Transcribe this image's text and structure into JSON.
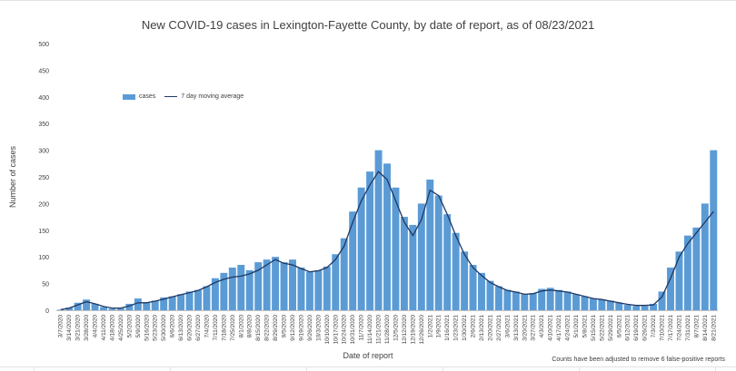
{
  "chart_data": {
    "type": "bar",
    "title": "New COVID-19 cases in Lexington-Fayette County, by date of report, as of 08/23/2021",
    "xlabel": "Date of report",
    "ylabel": "Number of cases",
    "ylim": [
      0,
      500
    ],
    "yticks": [
      0,
      50,
      100,
      150,
      200,
      250,
      300,
      350,
      400,
      450,
      500
    ],
    "grid": false,
    "legend_position": "top-left",
    "note": "Counts have been adjusted to remove 6 false-positive reports",
    "colors": {
      "bars": "#5b9bd5",
      "line": "#1f3864",
      "text": "#404040",
      "axis": "#bfbfbf"
    },
    "x_tick_labels": [
      "3/7/2020",
      "3/14/2020",
      "3/21/2020",
      "3/28/2020",
      "4/4/2020",
      "4/11/2020",
      "4/18/2020",
      "4/25/2020",
      "5/2/2020",
      "5/9/2020",
      "5/16/2020",
      "5/23/2020",
      "5/30/2020",
      "6/6/2020",
      "6/13/2020",
      "6/20/2020",
      "6/27/2020",
      "7/4/2020",
      "7/11/2020",
      "7/18/2020",
      "7/25/2020",
      "8/1/2020",
      "8/8/2020",
      "8/15/2020",
      "8/22/2020",
      "8/29/2020",
      "9/5/2020",
      "9/12/2020",
      "9/19/2020",
      "9/26/2020",
      "10/3/2020",
      "10/10/2020",
      "10/17/2020",
      "10/24/2020",
      "10/31/2020",
      "11/7/2020",
      "11/14/2020",
      "11/21/2020",
      "11/28/2020",
      "12/5/2020",
      "12/12/2020",
      "12/19/2020",
      "12/26/2020",
      "1/2/2021",
      "1/9/2021",
      "1/16/2021",
      "1/23/2021",
      "1/30/2021",
      "2/6/2021",
      "2/13/2021",
      "2/20/2021",
      "2/27/2021",
      "3/6/2021",
      "3/13/2021",
      "3/20/2021",
      "3/27/2021",
      "4/3/2021",
      "4/10/2021",
      "4/17/2021",
      "4/24/2021",
      "5/1/2021",
      "5/8/2021",
      "5/15/2021",
      "5/22/2021",
      "5/29/2021",
      "6/5/2021",
      "6/12/2021",
      "6/19/2021",
      "6/26/2021",
      "7/3/2021",
      "7/10/2021",
      "7/17/2021",
      "7/24/2021",
      "7/31/2021",
      "8/7/2021",
      "8/14/2021",
      "8/21/2021"
    ],
    "series": [
      {
        "name": "cases",
        "type": "bar",
        "x": [
          "3/7/2020",
          "3/14/2020",
          "3/21/2020",
          "3/28/2020",
          "4/4/2020",
          "4/11/2020",
          "4/18/2020",
          "4/25/2020",
          "5/2/2020",
          "5/9/2020",
          "5/16/2020",
          "5/23/2020",
          "5/30/2020",
          "6/6/2020",
          "6/13/2020",
          "6/20/2020",
          "6/27/2020",
          "7/4/2020",
          "7/11/2020",
          "7/18/2020",
          "7/25/2020",
          "8/1/2020",
          "8/8/2020",
          "8/15/2020",
          "8/22/2020",
          "8/29/2020",
          "9/5/2020",
          "9/12/2020",
          "9/19/2020",
          "9/26/2020",
          "10/3/2020",
          "10/10/2020",
          "10/17/2020",
          "10/24/2020",
          "10/31/2020",
          "11/7/2020",
          "11/14/2020",
          "11/21/2020",
          "11/28/2020",
          "12/5/2020",
          "12/12/2020",
          "12/19/2020",
          "12/26/2020",
          "1/2/2021",
          "1/9/2021",
          "1/16/2021",
          "1/23/2021",
          "1/30/2021",
          "2/6/2021",
          "2/13/2021",
          "2/20/2021",
          "2/27/2021",
          "3/6/2021",
          "3/13/2021",
          "3/20/2021",
          "3/27/2021",
          "4/3/2021",
          "4/10/2021",
          "4/17/2021",
          "4/24/2021",
          "5/1/2021",
          "5/8/2021",
          "5/15/2021",
          "5/22/2021",
          "5/29/2021",
          "6/5/2021",
          "6/12/2021",
          "6/19/2021",
          "6/26/2021",
          "7/3/2021",
          "7/10/2021",
          "7/17/2021",
          "7/24/2021",
          "7/31/2021",
          "8/7/2021",
          "8/14/2021",
          "8/21/2021"
        ],
        "values": [
          1,
          5,
          14,
          20,
          12,
          6,
          3,
          4,
          12,
          22,
          15,
          18,
          24,
          26,
          30,
          35,
          38,
          45,
          60,
          70,
          80,
          85,
          75,
          90,
          95,
          100,
          90,
          95,
          80,
          72,
          75,
          82,
          105,
          135,
          185,
          230,
          260,
          300,
          275,
          230,
          175,
          160,
          200,
          245,
          215,
          180,
          145,
          110,
          85,
          70,
          55,
          45,
          38,
          35,
          30,
          32,
          40,
          42,
          38,
          35,
          30,
          26,
          22,
          20,
          18,
          14,
          10,
          8,
          8,
          12,
          35,
          80,
          110,
          140,
          155,
          200,
          300
        ]
      },
      {
        "name": "7 day moving average",
        "type": "line",
        "x": [
          "3/7/2020",
          "3/14/2020",
          "3/21/2020",
          "3/28/2020",
          "4/4/2020",
          "4/11/2020",
          "4/18/2020",
          "4/25/2020",
          "5/2/2020",
          "5/9/2020",
          "5/16/2020",
          "5/23/2020",
          "5/30/2020",
          "6/6/2020",
          "6/13/2020",
          "6/20/2020",
          "6/27/2020",
          "7/4/2020",
          "7/11/2020",
          "7/18/2020",
          "7/25/2020",
          "8/1/2020",
          "8/8/2020",
          "8/15/2020",
          "8/22/2020",
          "8/29/2020",
          "9/5/2020",
          "9/12/2020",
          "9/19/2020",
          "9/26/2020",
          "10/3/2020",
          "10/10/2020",
          "10/17/2020",
          "10/24/2020",
          "10/31/2020",
          "11/7/2020",
          "11/14/2020",
          "11/21/2020",
          "11/28/2020",
          "12/5/2020",
          "12/12/2020",
          "12/19/2020",
          "12/26/2020",
          "1/2/2021",
          "1/9/2021",
          "1/16/2021",
          "1/23/2021",
          "1/30/2021",
          "2/6/2021",
          "2/13/2021",
          "2/20/2021",
          "2/27/2021",
          "3/6/2021",
          "3/13/2021",
          "3/20/2021",
          "3/27/2021",
          "4/3/2021",
          "4/10/2021",
          "4/17/2021",
          "4/24/2021",
          "5/1/2021",
          "5/8/2021",
          "5/15/2021",
          "5/22/2021",
          "5/29/2021",
          "6/5/2021",
          "6/12/2021",
          "6/19/2021",
          "6/26/2021",
          "7/3/2021",
          "7/10/2021",
          "7/17/2021",
          "7/24/2021",
          "7/31/2021",
          "8/7/2021",
          "8/14/2021",
          "8/21/2021"
        ],
        "values": [
          1,
          4,
          10,
          16,
          12,
          7,
          4,
          4,
          8,
          14,
          14,
          17,
          21,
          25,
          29,
          33,
          37,
          44,
          52,
          58,
          62,
          64,
          68,
          75,
          85,
          95,
          88,
          85,
          78,
          72,
          74,
          80,
          95,
          120,
          165,
          205,
          235,
          260,
          245,
          205,
          165,
          140,
          170,
          225,
          215,
          180,
          140,
          105,
          80,
          65,
          52,
          44,
          37,
          34,
          30,
          31,
          36,
          38,
          36,
          34,
          30,
          26,
          22,
          20,
          17,
          14,
          11,
          9,
          9,
          10,
          25,
          60,
          100,
          125,
          145,
          165,
          185
        ]
      }
    ]
  }
}
